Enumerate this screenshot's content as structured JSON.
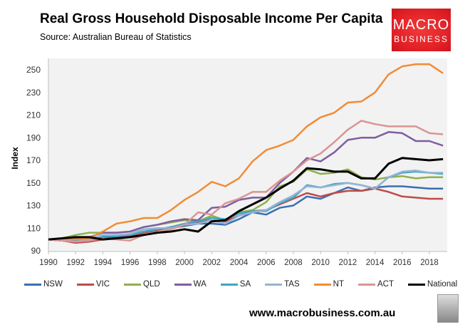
{
  "header": {
    "title": "Real Gross Household Disposable Income Per Capita",
    "source": "Source: Australian Bureau of Statistics"
  },
  "logo": {
    "line1": "MACRO",
    "line2": "BUSINESS",
    "color": "#e01f25"
  },
  "footer": {
    "url": "www.macrobusiness.com.au",
    "icon": "wolf-icon"
  },
  "chart_data": {
    "type": "line",
    "title": "Real Gross Household Disposable Income Per Capita",
    "ylabel": "Index",
    "xlabel": "",
    "ylim": [
      90,
      255
    ],
    "yticks": [
      90,
      110,
      130,
      150,
      170,
      190,
      210,
      230,
      250
    ],
    "xticks": [
      1990,
      1992,
      1994,
      1996,
      1998,
      2000,
      2002,
      2004,
      2006,
      2008,
      2010,
      2012,
      2014,
      2016,
      2018
    ],
    "grid": true,
    "legend": "bottom",
    "x": [
      1990,
      1991,
      1992,
      1993,
      1994,
      1995,
      1996,
      1997,
      1998,
      1999,
      2000,
      2001,
      2002,
      2003,
      2004,
      2005,
      2006,
      2007,
      2008,
      2009,
      2010,
      2011,
      2012,
      2013,
      2014,
      2015,
      2016,
      2017,
      2018,
      2019
    ],
    "series": [
      {
        "name": "NSW",
        "color": "#3a6fb0",
        "values": [
          100,
          99,
          98,
          99,
          102,
          102,
          104,
          107,
          109,
          110,
          112,
          114,
          114,
          113,
          118,
          124,
          122,
          128,
          130,
          138,
          136,
          141,
          146,
          143,
          146,
          147,
          147,
          146,
          145,
          145
        ]
      },
      {
        "name": "VIC",
        "color": "#be4b48",
        "values": [
          100,
          99,
          97,
          98,
          100,
          101,
          103,
          106,
          108,
          111,
          113,
          115,
          117,
          116,
          121,
          125,
          126,
          131,
          136,
          141,
          138,
          141,
          143,
          143,
          145,
          142,
          138,
          137,
          136,
          136
        ]
      },
      {
        "name": "QLD",
        "color": "#8fb04c",
        "values": [
          100,
          101,
          104,
          106,
          106,
          106,
          107,
          111,
          113,
          115,
          117,
          116,
          121,
          117,
          124,
          126,
          133,
          147,
          151,
          162,
          158,
          159,
          162,
          155,
          153,
          155,
          156,
          154,
          155,
          155
        ]
      },
      {
        "name": "WA",
        "color": "#7e5ea0",
        "values": [
          100,
          99,
          101,
          102,
          106,
          106,
          107,
          111,
          113,
          116,
          118,
          117,
          128,
          129,
          135,
          137,
          137,
          150,
          160,
          172,
          169,
          177,
          188,
          190,
          190,
          195,
          194,
          187,
          187,
          183
        ]
      },
      {
        "name": "SA",
        "color": "#3ea6c0",
        "values": [
          100,
          100,
          99,
          101,
          103,
          103,
          104,
          107,
          109,
          111,
          114,
          116,
          119,
          118,
          123,
          125,
          125,
          132,
          137,
          148,
          146,
          149,
          150,
          148,
          145,
          155,
          159,
          160,
          159,
          158
        ]
      },
      {
        "name": "TAS",
        "color": "#95b3d7",
        "values": [
          100,
          100,
          98,
          100,
          104,
          104,
          105,
          109,
          110,
          110,
          113,
          114,
          117,
          114,
          121,
          124,
          126,
          133,
          139,
          147,
          146,
          148,
          150,
          148,
          145,
          155,
          160,
          161,
          159,
          159
        ]
      },
      {
        "name": "NT",
        "color": "#f08c35",
        "values": [
          100,
          101,
          100,
          101,
          107,
          114,
          116,
          119,
          119,
          126,
          135,
          142,
          151,
          147,
          154,
          169,
          179,
          183,
          188,
          200,
          208,
          212,
          221,
          222,
          230,
          246,
          253,
          255,
          255,
          247
        ]
      },
      {
        "name": "ACT",
        "color": "#d99594",
        "values": [
          100,
          99,
          98,
          99,
          101,
          100,
          99,
          104,
          106,
          109,
          113,
          124,
          122,
          132,
          136,
          142,
          142,
          152,
          160,
          170,
          176,
          186,
          197,
          205,
          202,
          200,
          200,
          200,
          194,
          193
        ]
      },
      {
        "name": "National",
        "color": "#000000",
        "values": [
          100,
          101,
          102,
          102,
          100,
          101,
          102,
          104,
          106,
          107,
          109,
          107,
          116,
          117,
          125,
          131,
          137,
          145,
          152,
          163,
          162,
          160,
          160,
          154,
          154,
          167,
          172,
          171,
          170,
          171
        ]
      }
    ]
  }
}
